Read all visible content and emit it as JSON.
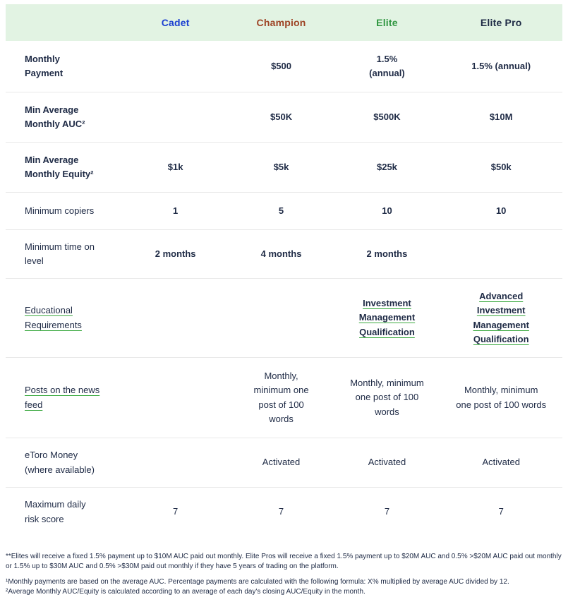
{
  "colors": {
    "header_bg": "#e2f3e3",
    "text": "#1e2a45",
    "divider": "#e8e8e8",
    "link_underline": "#3aa93f",
    "cadet": "#1b3fd1",
    "champion": "#9e4425",
    "elite": "#2f9640",
    "elite_pro": "#1e2a45"
  },
  "header": {
    "columns": [
      {
        "label": "Cadet",
        "color": "#1b3fd1"
      },
      {
        "label": "Champion",
        "color": "#9e4425"
      },
      {
        "label": "Elite",
        "color": "#2f9640"
      },
      {
        "label": "Elite Pro",
        "color": "#1e2a45"
      }
    ]
  },
  "rows": [
    {
      "label": "Monthly\nPayment",
      "values": [
        "",
        "$500",
        "1.5%\n(annual)",
        "1.5% (annual)"
      ]
    },
    {
      "label": "Min Average\nMonthly AUC²",
      "values": [
        "",
        "$50K",
        "$500K",
        "$10M"
      ]
    },
    {
      "label": "Min Average\nMonthly Equity²",
      "values": [
        "$1k",
        "$5k",
        "$25k",
        "$50k"
      ]
    },
    {
      "label": "Minimum copiers",
      "values": [
        "1",
        "5",
        "10",
        "10"
      ]
    },
    {
      "label": "Minimum time on\nlevel",
      "values": [
        "2 months",
        "4 months",
        "2 months",
        ""
      ]
    },
    {
      "label": "Educational\nRequirements",
      "values": [
        "",
        "",
        "Investment\nManagement\nQualification",
        "Advanced\nInvestment\nManagement\nQualification"
      ]
    },
    {
      "label": "Posts on the news\nfeed",
      "values": [
        "",
        "Monthly,\nminimum one\npost of 100\nwords",
        "Monthly, minimum\none post of 100\nwords",
        "Monthly, minimum\none post of 100 words"
      ]
    },
    {
      "label": "eToro Money\n(where available)",
      "values": [
        "",
        "Activated",
        "Activated",
        "Activated"
      ]
    },
    {
      "label": "Maximum daily\nrisk score",
      "values": [
        "7",
        "7",
        "7",
        "7"
      ]
    }
  ],
  "footnotes": [
    "**Elites will receive a fixed 1.5% payment up to $10M AUC paid out monthly. Elite Pros will receive a fixed 1.5% payment up to $20M AUC and 0.5% >$20M AUC paid out monthly or 1.5% up to $30M AUC and 0.5% >$30M paid out monthly if they have 5 years of trading on the platform.",
    "¹Monthly payments are based on the average AUC. Percentage payments are calculated with the following formula: X% multiplied by average AUC divided by 12.",
    "²Average Monthly AUC/Equity is calculated according to an average of each day's closing AUC/Equity in the month."
  ]
}
